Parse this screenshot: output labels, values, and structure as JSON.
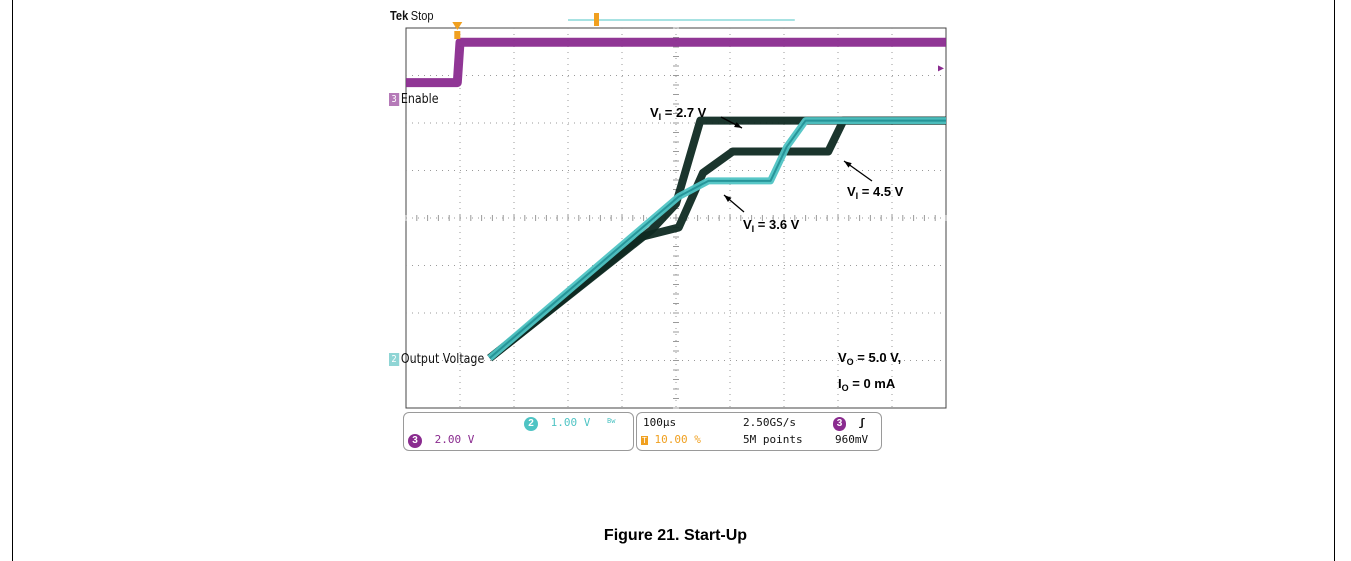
{
  "scope": {
    "brand": "Tek",
    "state": "Stop"
  },
  "channels": {
    "ch3_label": "Enable",
    "ch3_num": "3",
    "ch2_label": "Output Voltage",
    "ch2_num": "2"
  },
  "annotations": {
    "v1_prefix": "V",
    "v1_sub": "I",
    "v1_value": " = 2.7 V",
    "v2_prefix": "V",
    "v2_sub": "I",
    "v2_value": " = 4.5 V",
    "v3_prefix": "V",
    "v3_sub": "I",
    "v3_value": " = 3.6 V",
    "vo_prefix": "V",
    "vo_sub": "O",
    "vo_value": " = 5.0 V,",
    "io_prefix": "I",
    "io_sub": "O",
    "io_value": " = 0 mA"
  },
  "status_bar": {
    "ch2_num": "2",
    "ch2_scale": "1.00 V",
    "ch2_bw": "Bw",
    "ch3_num": "3",
    "ch3_scale": "2.00 V",
    "timebase": "100µs",
    "trigger_marker": "T",
    "trigger_pos": "10.00 %",
    "sample_rate": "2.50GS/s",
    "record_length": "5M points",
    "trig_ch": "3",
    "trig_slope": "ʃ",
    "trig_level": "960mV"
  },
  "caption": "Figure 21. Start-Up",
  "colors": {
    "enable": "#8a2b8f",
    "output": "#4fc4c4",
    "output_dark": "#1c8a8f",
    "curves_dark": "#0f2a22",
    "trigger": "#f0a020",
    "grid": "#9a9a9a"
  },
  "chart_data": {
    "type": "line",
    "xlim": [
      0,
      10
    ],
    "ylim": [
      0,
      8
    ],
    "grid": true,
    "series": [
      {
        "name": "Enable",
        "color": "#8a2b8f",
        "x": [
          0,
          0.95,
          1.0,
          10
        ],
        "y": [
          6.85,
          6.85,
          7.7,
          7.7
        ]
      },
      {
        "name": "",
        "color": "#0f2a22",
        "x": [
          1.55,
          4.55,
          5.0,
          5.45,
          7.8,
          10
        ],
        "y": [
          1.05,
          3.75,
          4.3,
          6.05,
          6.05,
          6.05
        ]
      },
      {
        "name": "",
        "color": "#0f2a22",
        "x": [
          1.55,
          4.35,
          5.05,
          5.5,
          6.05,
          6.3,
          7.5,
          7.82,
          8.1,
          10
        ],
        "y": [
          1.05,
          3.6,
          3.8,
          4.95,
          5.4,
          5.4,
          5.4,
          5.4,
          6.05,
          6.05
        ]
      },
      {
        "name": "Output Voltage",
        "color": "#4fc4c4",
        "x": [
          1.55,
          5.05,
          5.6,
          6.75,
          7.05,
          7.4,
          10
        ],
        "y": [
          1.05,
          4.45,
          4.78,
          4.78,
          5.5,
          6.05,
          6.05
        ]
      }
    ]
  }
}
